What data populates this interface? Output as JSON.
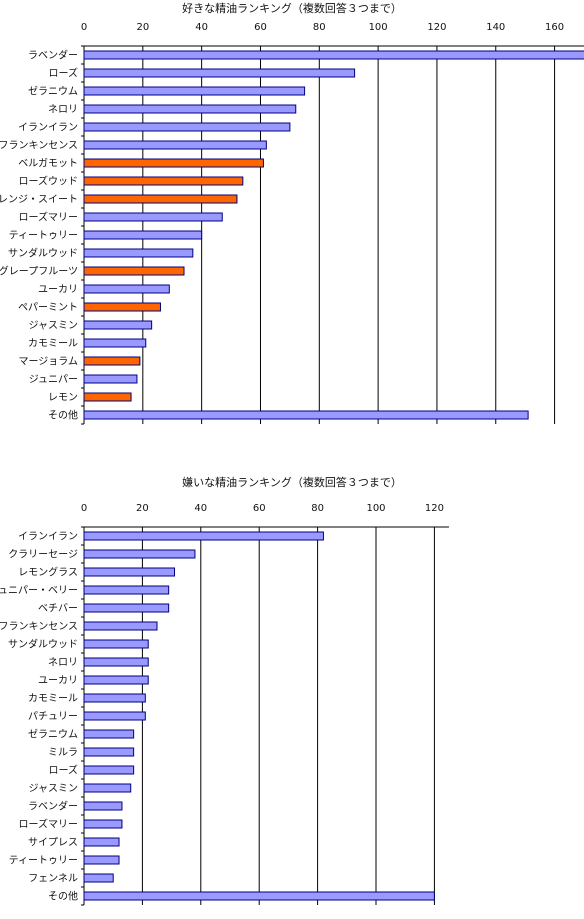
{
  "chart_data": [
    {
      "type": "bar",
      "orientation": "horizontal",
      "title": "好きな精油ランキング（複数回答３つまで）",
      "xlim": [
        0,
        170
      ],
      "ticks": [
        0,
        20,
        40,
        60,
        80,
        100,
        120,
        140,
        160
      ],
      "grid": true,
      "colors": {
        "default": "#9999ff",
        "highlight": "#ff6600",
        "border": "#000080"
      },
      "categories": [
        "ラベンダー",
        "ローズ",
        "ゼラニウム",
        "ネロリ",
        "イランイラン",
        "フランキンセンス",
        "ベルガモット",
        "ローズウッド",
        "オレンジ・スイート",
        "ローズマリー",
        "ティートゥリー",
        "サンダルウッド",
        "グレープフルーツ",
        "ユーカリ",
        "ペパーミント",
        "ジャスミン",
        "カモミール",
        "マージョラム",
        "ジュニパー",
        "レモン",
        "その他"
      ],
      "values": [
        172,
        92,
        75,
        72,
        70,
        62,
        61,
        54,
        52,
        47,
        40,
        37,
        34,
        29,
        26,
        23,
        21,
        19,
        18,
        16,
        151
      ],
      "highlighted": [
        false,
        false,
        false,
        false,
        false,
        false,
        true,
        true,
        true,
        false,
        false,
        false,
        true,
        false,
        true,
        false,
        false,
        true,
        false,
        true,
        false
      ]
    },
    {
      "type": "bar",
      "orientation": "horizontal",
      "title": "嫌いな精油ランキング（複数回答３つまで）",
      "xlim": [
        0,
        125
      ],
      "ticks": [
        0,
        20,
        40,
        60,
        80,
        100,
        120
      ],
      "grid": true,
      "colors": {
        "default": "#9999ff",
        "border": "#000080"
      },
      "categories": [
        "イランイラン",
        "クラリーセージ",
        "レモングラス",
        "ジュニパー・ベリー",
        "ベチバー",
        "フランキンセンス",
        "サンダルウッド",
        "ネロリ",
        "ユーカリ",
        "カモミール",
        "パチュリー",
        "ゼラニウム",
        "ミルラ",
        "ローズ",
        "ジャスミン",
        "ラベンダー",
        "ローズマリー",
        "サイプレス",
        "ティートゥリー",
        "フェンネル",
        "その他"
      ],
      "values": [
        82,
        38,
        31,
        29,
        29,
        25,
        22,
        22,
        22,
        21,
        21,
        17,
        17,
        17,
        16,
        13,
        13,
        12,
        12,
        10,
        120
      ]
    }
  ]
}
